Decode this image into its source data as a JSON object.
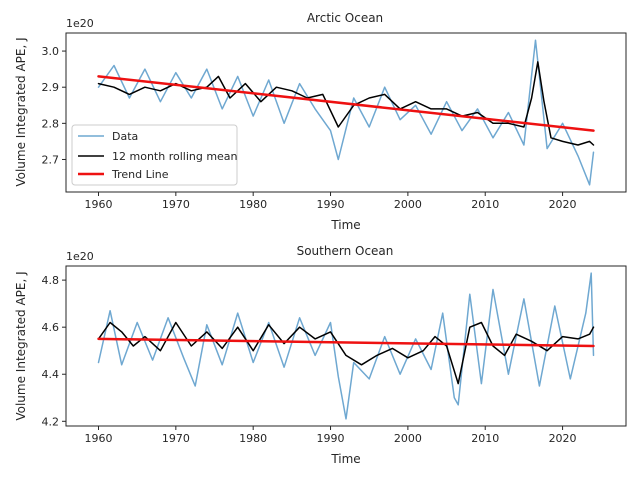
{
  "chart_data": [
    {
      "type": "line",
      "title": "Arctic Ocean",
      "xlabel": "Time",
      "ylabel": "Volume Integrated APE, J",
      "offset_text": "1e20",
      "xlim": [
        1955.8,
        2028.2
      ],
      "ylim": [
        2.61,
        3.05
      ],
      "x_ticks": [
        1960,
        1970,
        1980,
        1990,
        2000,
        2010,
        2020
      ],
      "y_ticks": [
        2.7,
        2.8,
        2.9,
        3.0
      ],
      "y_tick_labels": [
        "2.7",
        "2.8",
        "2.9",
        "3.0"
      ],
      "legend": {
        "placement": "lower-left",
        "entries": [
          "Data",
          "12 month rolling mean",
          "Trend Line"
        ]
      },
      "colors": {
        "data": "#6fa8d1",
        "rolling": "#000000",
        "trend": "#ee1111"
      },
      "series": [
        {
          "name": "Data",
          "x": [
            1960,
            1962,
            1964,
            1966,
            1968,
            1970,
            1972,
            1974,
            1976,
            1978,
            1980,
            1982,
            1984,
            1986,
            1988,
            1990,
            1991,
            1993,
            1995,
            1997,
            1999,
            2001,
            2003,
            2005,
            2007,
            2009,
            2011,
            2013,
            2015,
            2016.5,
            2017,
            2018,
            2020,
            2022,
            2023.5,
            2024
          ],
          "y": [
            2.9,
            2.96,
            2.87,
            2.95,
            2.86,
            2.94,
            2.87,
            2.95,
            2.84,
            2.93,
            2.82,
            2.92,
            2.8,
            2.91,
            2.84,
            2.78,
            2.7,
            2.87,
            2.79,
            2.9,
            2.81,
            2.85,
            2.77,
            2.86,
            2.78,
            2.84,
            2.76,
            2.83,
            2.74,
            3.03,
            2.93,
            2.73,
            2.8,
            2.71,
            2.63,
            2.72
          ]
        },
        {
          "name": "12 month rolling mean",
          "x": [
            1960,
            1962,
            1964,
            1966,
            1968,
            1970,
            1972,
            1974,
            1975.5,
            1977,
            1979,
            1981,
            1983,
            1985,
            1987,
            1989,
            1991,
            1993,
            1995,
            1997,
            1999,
            2001,
            2003,
            2005,
            2007,
            2009,
            2011,
            2013,
            2015,
            2016,
            2016.8,
            2017.6,
            2018.5,
            2020,
            2022,
            2023.5,
            2024
          ],
          "y": [
            2.91,
            2.9,
            2.88,
            2.9,
            2.89,
            2.91,
            2.89,
            2.9,
            2.93,
            2.87,
            2.91,
            2.86,
            2.9,
            2.89,
            2.87,
            2.88,
            2.79,
            2.85,
            2.87,
            2.88,
            2.84,
            2.86,
            2.84,
            2.84,
            2.82,
            2.83,
            2.8,
            2.8,
            2.79,
            2.87,
            2.97,
            2.86,
            2.76,
            2.75,
            2.74,
            2.75,
            2.74
          ]
        },
        {
          "name": "Trend Line",
          "x": [
            1960,
            2024
          ],
          "y": [
            2.93,
            2.78
          ]
        }
      ]
    },
    {
      "type": "line",
      "title": "Southern Ocean",
      "xlabel": "Time",
      "ylabel": "Volume Integrated APE, J",
      "offset_text": "1e20",
      "xlim": [
        1955.8,
        2028.2
      ],
      "ylim": [
        4.18,
        4.86
      ],
      "x_ticks": [
        1960,
        1970,
        1980,
        1990,
        2000,
        2010,
        2020
      ],
      "y_ticks": [
        4.2,
        4.4,
        4.6,
        4.8
      ],
      "y_tick_labels": [
        "4.2",
        "4.4",
        "4.6",
        "4.8"
      ],
      "colors": {
        "data": "#6fa8d1",
        "rolling": "#000000",
        "trend": "#ee1111"
      },
      "series": [
        {
          "name": "Data",
          "x": [
            1960,
            1961.5,
            1963,
            1965,
            1967,
            1969,
            1971,
            1972.5,
            1974,
            1976,
            1978,
            1980,
            1982,
            1984,
            1986,
            1988,
            1990,
            1991,
            1992,
            1993,
            1995,
            1997,
            1999,
            2001,
            2003,
            2004.5,
            2006,
            2006.5,
            2008,
            2009.5,
            2011,
            2013,
            2015,
            2017,
            2019,
            2021,
            2023,
            2023.7,
            2024
          ],
          "y": [
            4.45,
            4.67,
            4.44,
            4.62,
            4.46,
            4.64,
            4.47,
            4.35,
            4.61,
            4.44,
            4.66,
            4.45,
            4.62,
            4.43,
            4.64,
            4.48,
            4.62,
            4.39,
            4.21,
            4.45,
            4.38,
            4.56,
            4.4,
            4.55,
            4.42,
            4.66,
            4.3,
            4.27,
            4.74,
            4.36,
            4.76,
            4.4,
            4.72,
            4.35,
            4.69,
            4.38,
            4.66,
            4.83,
            4.48
          ]
        },
        {
          "name": "12 month rolling mean",
          "x": [
            1960,
            1961.5,
            1963,
            1964.5,
            1966,
            1968,
            1970,
            1972,
            1974,
            1976,
            1978,
            1980,
            1982,
            1984,
            1986,
            1988,
            1990,
            1992,
            1994,
            1996,
            1998,
            2000,
            2002,
            2003.5,
            2005,
            2006.5,
            2008,
            2009.5,
            2011,
            2012.5,
            2014,
            2016,
            2018,
            2020,
            2022,
            2023.5,
            2024
          ],
          "y": [
            4.55,
            4.62,
            4.58,
            4.52,
            4.56,
            4.5,
            4.62,
            4.52,
            4.58,
            4.51,
            4.6,
            4.5,
            4.61,
            4.53,
            4.6,
            4.55,
            4.58,
            4.48,
            4.44,
            4.48,
            4.51,
            4.47,
            4.5,
            4.56,
            4.52,
            4.36,
            4.6,
            4.62,
            4.52,
            4.48,
            4.57,
            4.54,
            4.5,
            4.56,
            4.55,
            4.57,
            4.6
          ]
        },
        {
          "name": "Trend Line",
          "x": [
            1960,
            2024
          ],
          "y": [
            4.55,
            4.52
          ]
        }
      ]
    }
  ]
}
